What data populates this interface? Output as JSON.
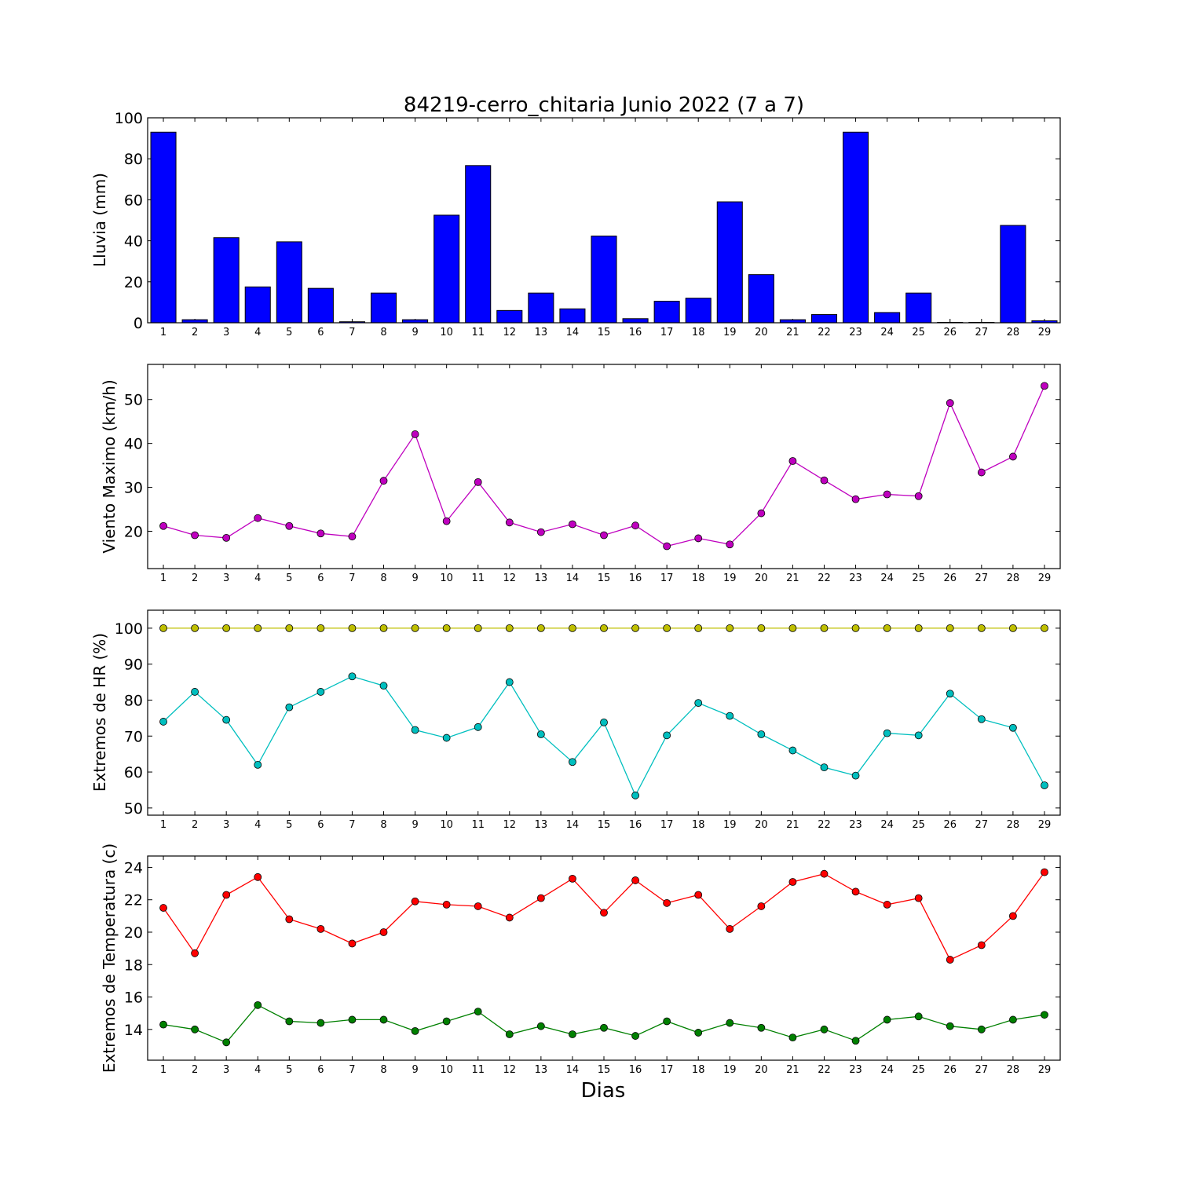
{
  "chart_data": [
    {
      "type": "bar",
      "title": "84219-cerro_chitaria Junio 2022  (7 a 7)",
      "xlabel": "",
      "ylabel": "Lluvia (mm)",
      "categories": [
        "1",
        "2",
        "3",
        "4",
        "5",
        "6",
        "7",
        "8",
        "9",
        "10",
        "11",
        "12",
        "13",
        "14",
        "15",
        "16",
        "17",
        "18",
        "19",
        "20",
        "21",
        "22",
        "23",
        "24",
        "25",
        "26",
        "27",
        "28",
        "29"
      ],
      "ylim": [
        0,
        100
      ],
      "yticks": [
        0,
        20,
        40,
        60,
        80,
        100
      ],
      "grid": false,
      "series": [
        {
          "color": "#0000ff",
          "values": [
            93.0,
            1.5,
            41.5,
            17.5,
            39.5,
            16.8,
            0.5,
            14.5,
            1.5,
            52.5,
            76.7,
            6.0,
            14.5,
            6.8,
            42.3,
            2.0,
            10.5,
            12.0,
            59.0,
            23.5,
            1.5,
            4.0,
            93.0,
            5.0,
            14.5,
            0.2,
            0.2,
            47.5,
            1.0
          ]
        }
      ]
    },
    {
      "type": "line",
      "title": "",
      "xlabel": "",
      "ylabel": "Viento Maximo (km/h)",
      "categories": [
        "1",
        "2",
        "3",
        "4",
        "5",
        "6",
        "7",
        "8",
        "9",
        "10",
        "11",
        "12",
        "13",
        "14",
        "15",
        "16",
        "17",
        "18",
        "19",
        "20",
        "21",
        "22",
        "23",
        "24",
        "25",
        "26",
        "27",
        "28",
        "29"
      ],
      "ylim": [
        11.5,
        58
      ],
      "yticks": [
        20,
        30,
        40,
        50
      ],
      "grid": false,
      "series": [
        {
          "color": "#bf00bf",
          "values": [
            21.2,
            19.1,
            18.5,
            23.0,
            21.2,
            19.5,
            18.8,
            31.5,
            42.1,
            22.3,
            31.2,
            22.0,
            19.8,
            21.6,
            19.1,
            21.3,
            16.6,
            18.4,
            17.0,
            24.1,
            36.0,
            31.6,
            27.3,
            28.4,
            28.0,
            49.2,
            33.4,
            37.0,
            53.1
          ]
        }
      ]
    },
    {
      "type": "line",
      "title": "",
      "xlabel": "",
      "ylabel": "Extremos de HR (%)",
      "categories": [
        "1",
        "2",
        "3",
        "4",
        "5",
        "6",
        "7",
        "8",
        "9",
        "10",
        "11",
        "12",
        "13",
        "14",
        "15",
        "16",
        "17",
        "18",
        "19",
        "20",
        "21",
        "22",
        "23",
        "24",
        "25",
        "26",
        "27",
        "28",
        "29"
      ],
      "ylim": [
        48,
        105
      ],
      "yticks": [
        50,
        60,
        70,
        80,
        90,
        100
      ],
      "grid": false,
      "series": [
        {
          "color": "#bfbf00",
          "values": [
            100,
            100,
            100,
            100,
            100,
            100,
            100,
            100,
            100,
            100,
            100,
            100,
            100,
            100,
            100,
            100,
            100,
            100,
            100,
            100,
            100,
            100,
            100,
            100,
            100,
            100,
            100,
            100,
            100
          ]
        },
        {
          "color": "#00bfbf",
          "values": [
            74.0,
            82.3,
            74.5,
            62.0,
            78.0,
            82.3,
            86.6,
            84.0,
            71.7,
            69.5,
            72.5,
            85.0,
            70.5,
            62.8,
            73.8,
            53.5,
            70.2,
            79.2,
            75.6,
            70.5,
            66.0,
            61.3,
            59.0,
            70.8,
            70.2,
            81.8,
            74.7,
            72.3,
            56.3
          ]
        }
      ]
    },
    {
      "type": "line",
      "title": "",
      "xlabel": "Dias",
      "ylabel": "Extremos de Temperatura (c)",
      "categories": [
        "1",
        "2",
        "3",
        "4",
        "5",
        "6",
        "7",
        "8",
        "9",
        "10",
        "11",
        "12",
        "13",
        "14",
        "15",
        "16",
        "17",
        "18",
        "19",
        "20",
        "21",
        "22",
        "23",
        "24",
        "25",
        "26",
        "27",
        "28",
        "29"
      ],
      "ylim": [
        12.1,
        24.7
      ],
      "yticks": [
        14,
        16,
        18,
        20,
        22,
        24
      ],
      "grid": false,
      "series": [
        {
          "color": "#ff0000",
          "values": [
            21.5,
            18.7,
            22.3,
            23.4,
            20.8,
            20.2,
            19.3,
            20.0,
            21.9,
            21.7,
            21.6,
            20.9,
            22.1,
            23.3,
            21.2,
            23.2,
            21.8,
            22.3,
            20.2,
            21.6,
            23.1,
            23.6,
            22.5,
            21.7,
            22.1,
            18.3,
            19.2,
            21.0,
            23.7
          ]
        },
        {
          "color": "#008000",
          "values": [
            14.3,
            14.0,
            13.2,
            15.5,
            14.5,
            14.4,
            14.6,
            14.6,
            13.9,
            14.5,
            15.1,
            13.7,
            14.2,
            13.7,
            14.1,
            13.6,
            14.5,
            13.8,
            14.4,
            14.1,
            13.5,
            14.0,
            13.3,
            14.6,
            14.8,
            14.2,
            14.0,
            14.6,
            14.9
          ]
        }
      ]
    }
  ]
}
